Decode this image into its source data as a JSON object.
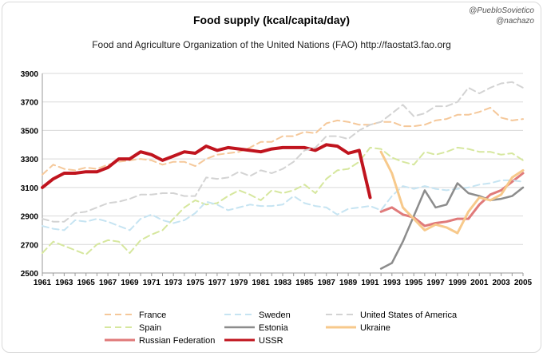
{
  "credits": [
    "@PuebloSovietico",
    "@nachazo"
  ],
  "chart_data": {
    "type": "line",
    "title": "Food supply (kcal/capita/day)",
    "subtitle": "Food and Agriculture Organization of the United Nations (FAO) http://faostat3.fao.org",
    "xlabel": "",
    "ylabel": "",
    "xlim": [
      1961,
      2005
    ],
    "ylim": [
      2500,
      3900
    ],
    "y_ticks": [
      2500,
      2700,
      2900,
      3100,
      3300,
      3500,
      3700,
      3900
    ],
    "x_ticks": [
      1961,
      1963,
      1965,
      1967,
      1969,
      1971,
      1973,
      1975,
      1977,
      1979,
      1981,
      1983,
      1985,
      1987,
      1989,
      1991,
      1993,
      1995,
      1997,
      1999,
      2001,
      2003,
      2005
    ],
    "grid": "horizontal",
    "legend_position": "bottom",
    "series": [
      {
        "name": "France",
        "color": "#f5c89a",
        "dash": "8,5",
        "width": 2,
        "x": [
          1961,
          1962,
          1963,
          1964,
          1965,
          1966,
          1967,
          1968,
          1969,
          1970,
          1971,
          1972,
          1973,
          1974,
          1975,
          1976,
          1977,
          1978,
          1979,
          1980,
          1981,
          1982,
          1983,
          1984,
          1985,
          1986,
          1987,
          1988,
          1989,
          1990,
          1991,
          1992,
          1993,
          1994,
          1995,
          1996,
          1997,
          1998,
          1999,
          2000,
          2001,
          2002,
          2003,
          2004,
          2005
        ],
        "y": [
          3190,
          3260,
          3230,
          3220,
          3240,
          3230,
          3260,
          3280,
          3290,
          3300,
          3290,
          3260,
          3280,
          3280,
          3250,
          3300,
          3330,
          3340,
          3350,
          3380,
          3420,
          3420,
          3460,
          3460,
          3490,
          3480,
          3550,
          3570,
          3560,
          3540,
          3540,
          3560,
          3560,
          3530,
          3530,
          3540,
          3570,
          3580,
          3610,
          3610,
          3630,
          3660,
          3590,
          3570,
          3580
        ]
      },
      {
        "name": "Spain",
        "color": "#d6e79e",
        "dash": "8,5",
        "width": 2,
        "x": [
          1961,
          1962,
          1963,
          1964,
          1965,
          1966,
          1967,
          1968,
          1969,
          1970,
          1971,
          1972,
          1973,
          1974,
          1975,
          1976,
          1977,
          1978,
          1979,
          1980,
          1981,
          1982,
          1983,
          1984,
          1985,
          1986,
          1987,
          1988,
          1989,
          1990,
          1991,
          1992,
          1993,
          1994,
          1995,
          1996,
          1997,
          1998,
          1999,
          2000,
          2001,
          2002,
          2003,
          2004,
          2005
        ],
        "y": [
          2640,
          2720,
          2690,
          2660,
          2630,
          2700,
          2730,
          2720,
          2640,
          2730,
          2770,
          2800,
          2880,
          2960,
          3010,
          2980,
          2990,
          3040,
          3080,
          3050,
          3010,
          3080,
          3060,
          3080,
          3120,
          3060,
          3160,
          3220,
          3230,
          3280,
          3380,
          3370,
          3310,
          3280,
          3260,
          3350,
          3330,
          3350,
          3380,
          3370,
          3350,
          3350,
          3330,
          3340,
          3290
        ]
      },
      {
        "name": "Russian Federation",
        "color": "#e07a7a",
        "dash": "",
        "width": 3,
        "x": [
          1992,
          1993,
          1994,
          1995,
          1996,
          1997,
          1998,
          1999,
          2000,
          2001,
          2002,
          2003,
          2004,
          2005
        ],
        "y": [
          2930,
          2960,
          2910,
          2890,
          2830,
          2850,
          2860,
          2880,
          2880,
          2980,
          3050,
          3080,
          3140,
          3200
        ]
      },
      {
        "name": "Sweden",
        "color": "#c6e4f2",
        "dash": "8,5",
        "width": 2,
        "x": [
          1961,
          1962,
          1963,
          1964,
          1965,
          1966,
          1967,
          1968,
          1969,
          1970,
          1971,
          1972,
          1973,
          1974,
          1975,
          1976,
          1977,
          1978,
          1979,
          1980,
          1981,
          1982,
          1983,
          1984,
          1985,
          1986,
          1987,
          1988,
          1989,
          1990,
          1991,
          1992,
          1993,
          1994,
          1995,
          1996,
          1997,
          1998,
          1999,
          2000,
          2001,
          2002,
          2003,
          2004,
          2005
        ],
        "y": [
          2830,
          2810,
          2800,
          2870,
          2860,
          2880,
          2860,
          2830,
          2800,
          2880,
          2910,
          2870,
          2850,
          2870,
          2920,
          3000,
          2980,
          2940,
          2960,
          2980,
          2970,
          2970,
          2980,
          3040,
          2990,
          2970,
          2960,
          2910,
          2950,
          2960,
          2970,
          2940,
          3040,
          3110,
          3090,
          3110,
          3090,
          3080,
          3090,
          3100,
          3120,
          3130,
          3150,
          3150,
          3140
        ]
      },
      {
        "name": "Estonia",
        "color": "#8c8c8c",
        "dash": "",
        "width": 2.5,
        "x": [
          1992,
          1993,
          1994,
          1995,
          1996,
          1997,
          1998,
          1999,
          2000,
          2001,
          2002,
          2003,
          2004,
          2005
        ],
        "y": [
          2530,
          2570,
          2720,
          2900,
          3080,
          2960,
          2980,
          3130,
          3060,
          3040,
          3010,
          3020,
          3040,
          3100
        ]
      },
      {
        "name": "USSR",
        "color": "#c0141e",
        "dash": "",
        "width": 4,
        "x": [
          1961,
          1962,
          1963,
          1964,
          1965,
          1966,
          1967,
          1968,
          1969,
          1970,
          1971,
          1972,
          1973,
          1974,
          1975,
          1976,
          1977,
          1978,
          1979,
          1980,
          1981,
          1982,
          1983,
          1984,
          1985,
          1986,
          1987,
          1988,
          1989,
          1990,
          1991
        ],
        "y": [
          3100,
          3160,
          3200,
          3200,
          3210,
          3210,
          3240,
          3300,
          3300,
          3350,
          3330,
          3290,
          3320,
          3350,
          3340,
          3390,
          3360,
          3380,
          3370,
          3360,
          3350,
          3370,
          3380,
          3380,
          3380,
          3360,
          3400,
          3390,
          3340,
          3360,
          3030
        ]
      },
      {
        "name": "United States of America",
        "color": "#d3d3d3",
        "dash": "8,5",
        "width": 2,
        "x": [
          1961,
          1962,
          1963,
          1964,
          1965,
          1966,
          1967,
          1968,
          1969,
          1970,
          1971,
          1972,
          1973,
          1974,
          1975,
          1976,
          1977,
          1978,
          1979,
          1980,
          1981,
          1982,
          1983,
          1984,
          1985,
          1986,
          1987,
          1988,
          1989,
          1990,
          1991,
          1992,
          1993,
          1994,
          1995,
          1996,
          1997,
          1998,
          1999,
          2000,
          2001,
          2002,
          2003,
          2004,
          2005
        ],
        "y": [
          2880,
          2860,
          2860,
          2920,
          2930,
          2960,
          2990,
          3000,
          3020,
          3050,
          3050,
          3060,
          3060,
          3040,
          3040,
          3170,
          3160,
          3170,
          3210,
          3180,
          3220,
          3200,
          3230,
          3280,
          3360,
          3380,
          3460,
          3460,
          3440,
          3500,
          3540,
          3560,
          3620,
          3680,
          3600,
          3620,
          3670,
          3670,
          3700,
          3800,
          3760,
          3800,
          3830,
          3840,
          3800
        ]
      },
      {
        "name": "Ukraine",
        "color": "#f7c98b",
        "dash": "",
        "width": 3,
        "x": [
          1992,
          1993,
          1994,
          1995,
          1996,
          1997,
          1998,
          1999,
          2000,
          2001,
          2002,
          2003,
          2004,
          2005
        ],
        "y": [
          3350,
          3200,
          2960,
          2880,
          2800,
          2840,
          2820,
          2780,
          2930,
          3030,
          3010,
          3050,
          3170,
          3220
        ]
      }
    ]
  }
}
